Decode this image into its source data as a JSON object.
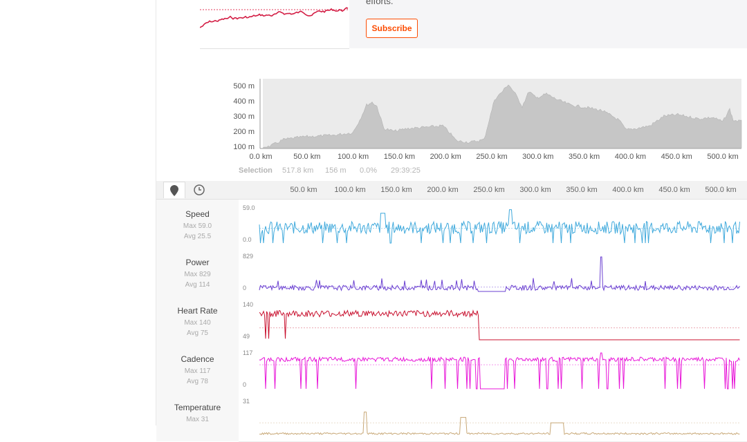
{
  "promo": {
    "text": "efforts.",
    "subscribe_label": "Subscribe"
  },
  "elevation": {
    "y_labels": [
      "500 m",
      "400 m",
      "300 m",
      "200 m",
      "100 m"
    ],
    "x_labels": [
      "0.0 km",
      "50.0 km",
      "100.0 km",
      "150.0 km",
      "200.0 km",
      "250.0 km",
      "300.0 km",
      "350.0 km",
      "400.0 km",
      "450.0 km",
      "500.0 km"
    ]
  },
  "selection": {
    "label": "Selection",
    "distance": "517.8 km",
    "elevation": "156 m",
    "grade": "0.0%",
    "time": "29:39:25"
  },
  "toolbar": {
    "map_icon": "map-marker-icon",
    "time_icon": "clock-icon",
    "axis_labels": [
      "50.0 km",
      "100.0 km",
      "150.0 km",
      "200.0 km",
      "250.0 km",
      "300.0 km",
      "350.0 km",
      "400.0 km",
      "450.0 km",
      "500.0 km"
    ]
  },
  "metrics": [
    {
      "name": "Speed",
      "max": "Max 59.0",
      "avg": "Avg 25.5",
      "ymax": "59.0",
      "ymin": "0.0",
      "color": "#3fa9dc"
    },
    {
      "name": "Power",
      "max": "Max 829",
      "avg": "Avg 114",
      "ymax": "829",
      "ymin": "0",
      "color": "#6a3fd1"
    },
    {
      "name": "Heart Rate",
      "max": "Max 140",
      "avg": "Avg 75",
      "ymax": "140",
      "ymin": "49",
      "color": "#c8102e"
    },
    {
      "name": "Cadence",
      "max": "Max 117",
      "avg": "Avg 78",
      "ymax": "117",
      "ymin": "0",
      "color": "#e815d8"
    },
    {
      "name": "Temperature",
      "max": "Max 31",
      "avg": "",
      "ymax": "31",
      "ymin": "",
      "color": "#c8a877"
    }
  ]
}
